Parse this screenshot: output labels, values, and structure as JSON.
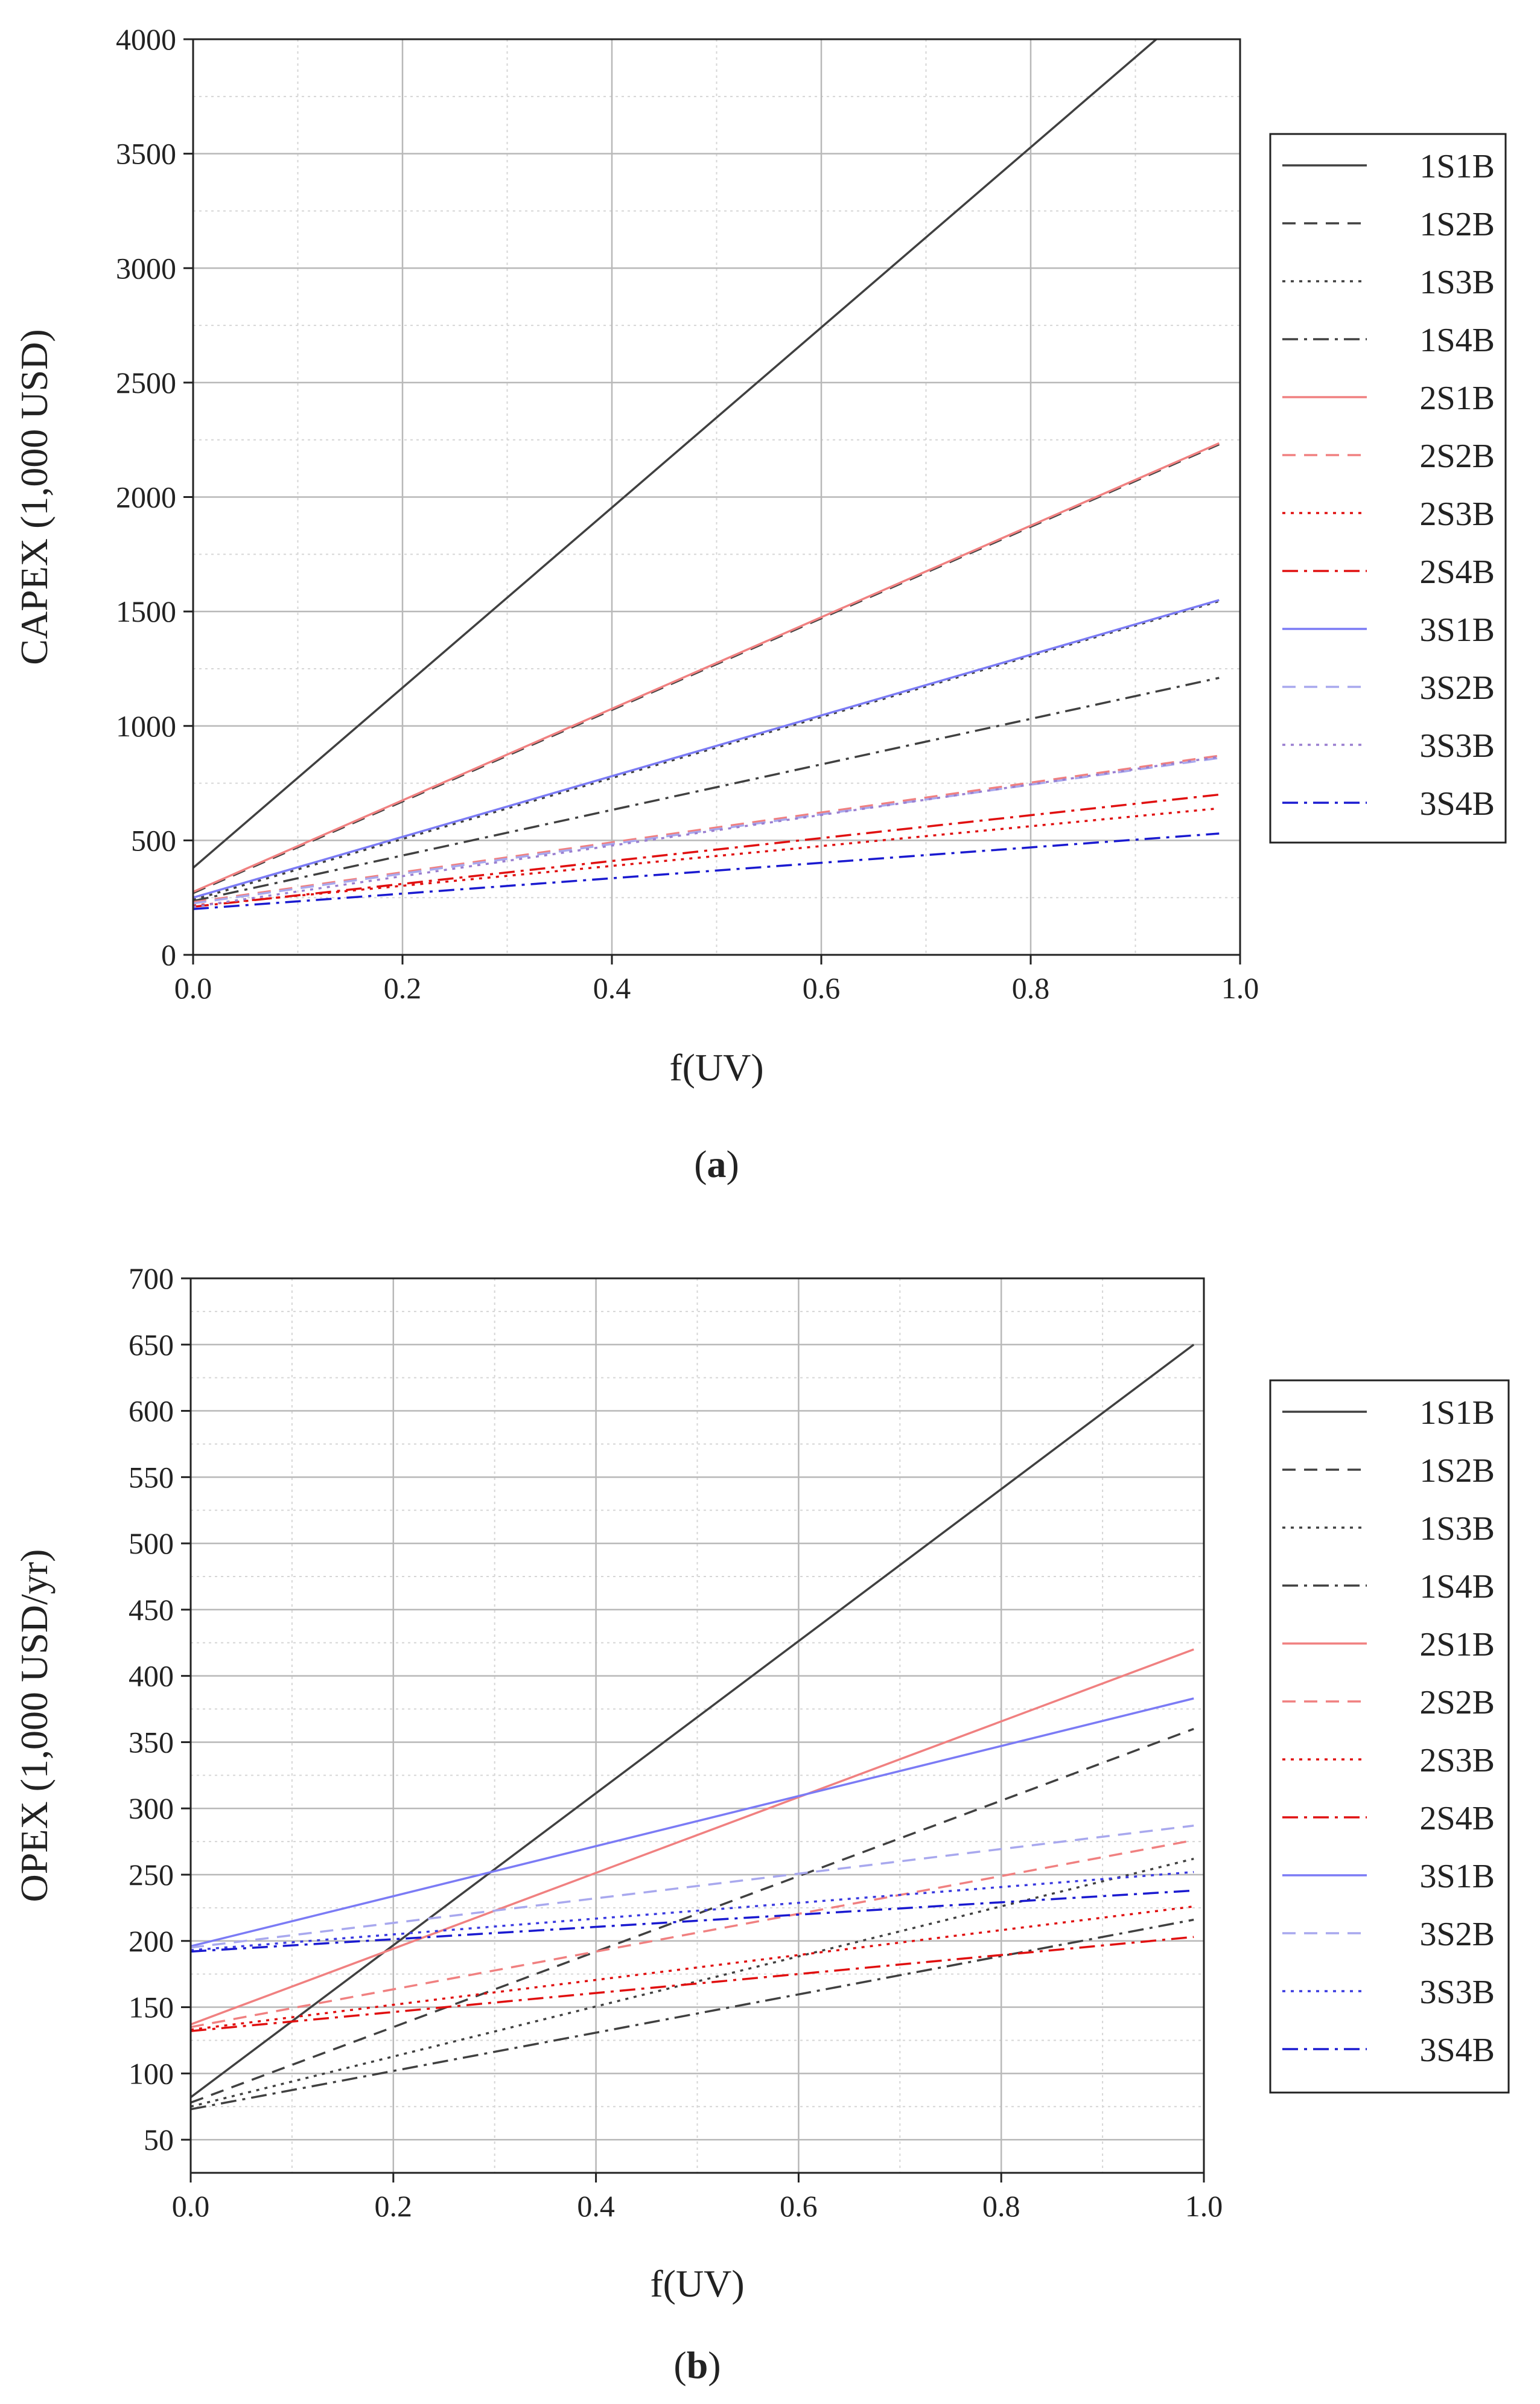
{
  "chart_data": [
    {
      "type": "line",
      "title": "",
      "caption_open": "(",
      "caption_letter": "a",
      "caption_close": ")",
      "xlabel": "f(UV)",
      "ylabel": "CAPEX (1,000 USD)",
      "xlim": [
        0,
        1.0
      ],
      "ylim": [
        0,
        4000
      ],
      "xticks": [
        "0.0",
        "0.2",
        "0.4",
        "0.6",
        "0.8",
        "1.0"
      ],
      "yticks": [
        "0",
        "500",
        "1000",
        "1500",
        "2000",
        "2500",
        "3000",
        "3500",
        "4000"
      ],
      "grid": true,
      "legend_position": "right",
      "series": [
        {
          "name": "1S1B",
          "x": [
            0,
            0.92
          ],
          "values": [
            380,
            4000
          ],
          "color": "#404040",
          "dash": "solid"
        },
        {
          "name": "1S2B",
          "x": [
            0,
            0.98
          ],
          "values": [
            270,
            2230
          ],
          "color": "#404040",
          "dash": "dashed"
        },
        {
          "name": "1S3B",
          "x": [
            0,
            0.98
          ],
          "values": [
            240,
            1545
          ],
          "color": "#404040",
          "dash": "dotted"
        },
        {
          "name": "1S4B",
          "x": [
            0,
            0.98
          ],
          "values": [
            235,
            1210
          ],
          "color": "#404040",
          "dash": "dashdot"
        },
        {
          "name": "2S1B",
          "x": [
            0,
            0.98
          ],
          "values": [
            275,
            2235
          ],
          "color": "#f08080",
          "dash": "solid"
        },
        {
          "name": "2S2B",
          "x": [
            0,
            0.98
          ],
          "values": [
            230,
            870
          ],
          "color": "#f08080",
          "dash": "dashed"
        },
        {
          "name": "2S3B",
          "x": [
            0,
            0.98
          ],
          "values": [
            215,
            640
          ],
          "color": "#e01010",
          "dash": "dotted"
        },
        {
          "name": "2S4B",
          "x": [
            0,
            0.98
          ],
          "values": [
            210,
            700
          ],
          "color": "#e01010",
          "dash": "dashdot"
        },
        {
          "name": "3S1B",
          "x": [
            0,
            0.98
          ],
          "values": [
            250,
            1550
          ],
          "color": "#7b7bf5",
          "dash": "solid"
        },
        {
          "name": "3S2B",
          "x": [
            0,
            0.98
          ],
          "values": [
            225,
            860
          ],
          "color": "#a8a8ee",
          "dash": "dashed"
        },
        {
          "name": "3S3B",
          "x": [
            0,
            0.98
          ],
          "values": [
            210,
            865
          ],
          "color": "#9a7fd0",
          "dash": "dotted"
        },
        {
          "name": "3S4B",
          "x": [
            0,
            0.98
          ],
          "values": [
            200,
            530
          ],
          "color": "#1a1ad0",
          "dash": "dashdot"
        }
      ]
    },
    {
      "type": "line",
      "title": "",
      "caption_open": "(",
      "caption_letter": "b",
      "caption_close": ")",
      "xlabel": "f(UV)",
      "ylabel": "OPEX (1,000 USD/yr)",
      "xlim": [
        0,
        1.0
      ],
      "ylim": [
        25,
        700
      ],
      "xticks": [
        "0.0",
        "0.2",
        "0.4",
        "0.6",
        "0.8",
        "1.0"
      ],
      "yticks": [
        "50",
        "100",
        "150",
        "200",
        "250",
        "300",
        "350",
        "400",
        "450",
        "500",
        "550",
        "600",
        "650",
        "700"
      ],
      "grid": true,
      "legend_position": "right",
      "series": [
        {
          "name": "1S1B",
          "x": [
            0,
            0.99
          ],
          "values": [
            82,
            650
          ],
          "color": "#404040",
          "dash": "solid"
        },
        {
          "name": "1S2B",
          "x": [
            0,
            0.99
          ],
          "values": [
            78,
            360
          ],
          "color": "#404040",
          "dash": "dashed"
        },
        {
          "name": "1S3B",
          "x": [
            0,
            0.99
          ],
          "values": [
            75,
            262
          ],
          "color": "#404040",
          "dash": "dotted"
        },
        {
          "name": "1S4B",
          "x": [
            0,
            0.99
          ],
          "values": [
            73,
            216
          ],
          "color": "#404040",
          "dash": "dashdot"
        },
        {
          "name": "2S1B",
          "x": [
            0,
            0.99
          ],
          "values": [
            137,
            420
          ],
          "color": "#f08080",
          "dash": "solid"
        },
        {
          "name": "2S2B",
          "x": [
            0,
            0.99
          ],
          "values": [
            135,
            276
          ],
          "color": "#f08080",
          "dash": "dashed"
        },
        {
          "name": "2S3B",
          "x": [
            0,
            0.99
          ],
          "values": [
            133,
            226
          ],
          "color": "#e01010",
          "dash": "dotted"
        },
        {
          "name": "2S4B",
          "x": [
            0,
            0.99
          ],
          "values": [
            132,
            203
          ],
          "color": "#e01010",
          "dash": "dashdot"
        },
        {
          "name": "3S1B",
          "x": [
            0,
            0.99
          ],
          "values": [
            196,
            383
          ],
          "color": "#7b7bf5",
          "dash": "solid"
        },
        {
          "name": "3S2B",
          "x": [
            0,
            0.99
          ],
          "values": [
            195,
            287
          ],
          "color": "#a8a8ee",
          "dash": "dashed"
        },
        {
          "name": "3S3B",
          "x": [
            0,
            0.99
          ],
          "values": [
            193,
            252
          ],
          "color": "#3a3ae0",
          "dash": "dotted"
        },
        {
          "name": "3S4B",
          "x": [
            0,
            0.99
          ],
          "values": [
            192,
            238
          ],
          "color": "#1a1ad0",
          "dash": "dashdot"
        }
      ]
    }
  ]
}
